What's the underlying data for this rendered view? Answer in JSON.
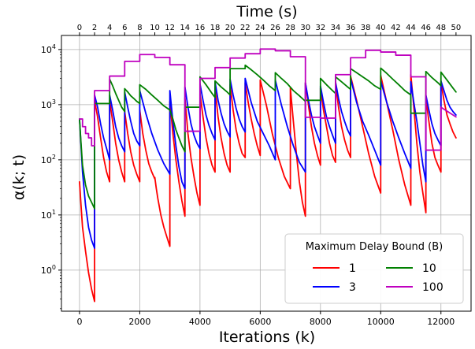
{
  "chart_data": {
    "type": "line",
    "xlabel": "Iterations (k)",
    "ylabel": "α(k; t)",
    "top_xlabel": "Time (s)",
    "yscale": "log",
    "xlim": [
      -600,
      13000
    ],
    "ylim": [
      0.18,
      18000
    ],
    "grid": true,
    "x_ticks": [
      0,
      2000,
      4000,
      6000,
      8000,
      10000,
      12000
    ],
    "x_tick_labels": [
      "0",
      "2000",
      "4000",
      "6000",
      "8000",
      "10000",
      "12000"
    ],
    "y_ticks": [
      1,
      10,
      100,
      1000,
      10000
    ],
    "y_tick_base": "10",
    "y_tick_exponents": [
      "0",
      "1",
      "2",
      "3",
      "4"
    ],
    "top_ticks": [
      0,
      2,
      4,
      6,
      8,
      10,
      12,
      14,
      16,
      18,
      20,
      22,
      24,
      26,
      28,
      30,
      32,
      34,
      36,
      38,
      40,
      42,
      44,
      46,
      48,
      50
    ],
    "top_tick_labels": [
      "0",
      "2",
      "4",
      "6",
      "8",
      "10",
      "12",
      "14",
      "16",
      "18",
      "20",
      "22",
      "24",
      "26",
      "28",
      "30",
      "32",
      "34",
      "36",
      "38",
      "40",
      "42",
      "44",
      "46",
      "48",
      "50"
    ],
    "top_tick_iterations_per_second": 250,
    "legend": {
      "title": "Maximum Delay Bound (B)",
      "placement": "lower-right",
      "columns": 2
    },
    "series": [
      {
        "name": "1",
        "color": "#ff0000",
        "x": [
          0,
          50,
          100,
          200,
          300,
          400,
          500,
          500,
          600,
          700,
          800,
          900,
          1000,
          1000,
          1100,
          1200,
          1300,
          1400,
          1500,
          1500,
          1600,
          1700,
          1800,
          1900,
          2000,
          2000,
          2100,
          2200,
          2300,
          2400,
          2500,
          2500,
          2550,
          2600,
          2700,
          2800,
          2900,
          3000,
          3000,
          3100,
          3200,
          3300,
          3400,
          3500,
          3500,
          3600,
          3700,
          3800,
          3900,
          4000,
          4000,
          4100,
          4200,
          4300,
          4400,
          4500,
          4500,
          4600,
          4700,
          4800,
          4900,
          5000,
          5000,
          5100,
          5200,
          5300,
          5400,
          5500,
          5500,
          5600,
          5700,
          5800,
          5900,
          6000,
          6000,
          6200,
          6400,
          6600,
          6800,
          7000,
          7000,
          7100,
          7200,
          7300,
          7400,
          7500,
          7500,
          7600,
          7700,
          7800,
          7900,
          8000,
          8000,
          8100,
          8200,
          8300,
          8400,
          8500,
          8500,
          8600,
          8700,
          8800,
          8900,
          9000,
          9000,
          9200,
          9400,
          9600,
          9800,
          10000,
          10000,
          10200,
          10400,
          10600,
          10800,
          11000,
          11000,
          11100,
          11200,
          11300,
          11400,
          11500,
          11500,
          11600,
          11700,
          11800,
          11900,
          12000,
          12000,
          12100,
          12200,
          12300,
          12400,
          12500
        ],
        "y": [
          40,
          15,
          6,
          2.2,
          0.9,
          0.45,
          0.27,
          1200,
          600,
          250,
          110,
          60,
          40,
          1200,
          500,
          200,
          100,
          60,
          40,
          750,
          300,
          140,
          80,
          55,
          40,
          800,
          300,
          150,
          85,
          60,
          45,
          48,
          30,
          20,
          10,
          6,
          4,
          2.7,
          1150,
          300,
          100,
          40,
          18,
          9.5,
          1350,
          300,
          110,
          50,
          25,
          15,
          1600,
          600,
          250,
          130,
          80,
          60,
          2000,
          600,
          250,
          130,
          80,
          60,
          2300,
          800,
          350,
          200,
          130,
          110,
          2500,
          1100,
          550,
          300,
          180,
          120,
          2800,
          1000,
          300,
          110,
          50,
          30,
          2000,
          500,
          130,
          40,
          17,
          9.5,
          2500,
          1000,
          400,
          200,
          120,
          80,
          2000,
          800,
          400,
          200,
          120,
          90,
          2400,
          900,
          400,
          230,
          150,
          110,
          3300,
          1200,
          400,
          130,
          50,
          25,
          3400,
          1100,
          350,
          100,
          35,
          15,
          3500,
          900,
          200,
          60,
          25,
          11,
          1300,
          500,
          200,
          110,
          80,
          60,
          2600,
          1200,
          650,
          450,
          320,
          250
        ]
      },
      {
        "name": "3",
        "color": "#0000ff",
        "x": [
          0,
          100,
          200,
          300,
          400,
          500,
          500,
          600,
          700,
          800,
          900,
          1000,
          1000,
          1100,
          1200,
          1300,
          1400,
          1500,
          1500,
          1600,
          1700,
          1800,
          1900,
          2000,
          2000,
          2200,
          2400,
          2600,
          2800,
          3000,
          3000,
          3100,
          3200,
          3300,
          3400,
          3500,
          3500,
          3600,
          3700,
          3800,
          3900,
          4000,
          4000,
          4100,
          4200,
          4300,
          4400,
          4500,
          4500,
          4600,
          4700,
          4800,
          4900,
          5000,
          5000,
          5100,
          5200,
          5300,
          5400,
          5500,
          5500,
          5700,
          5900,
          6100,
          6300,
          6500,
          6500,
          6700,
          6900,
          7100,
          7300,
          7500,
          7500,
          7600,
          7700,
          7800,
          7900,
          8000,
          8000,
          8100,
          8200,
          8300,
          8400,
          8500,
          8500,
          8600,
          8700,
          8800,
          8900,
          9000,
          9000,
          9200,
          9400,
          9600,
          9800,
          10000,
          10000,
          10200,
          10400,
          10600,
          10800,
          11000,
          11000,
          11100,
          11200,
          11300,
          11400,
          11500,
          11500,
          11600,
          11700,
          11800,
          11900,
          12000,
          12000,
          12100,
          12200,
          12300,
          12400,
          12500
        ],
        "y": [
          550,
          60,
          15,
          6,
          3.5,
          2.5,
          1500,
          900,
          450,
          250,
          160,
          100,
          1500,
          800,
          400,
          250,
          180,
          140,
          1700,
          900,
          500,
          300,
          220,
          180,
          1800,
          700,
          300,
          150,
          85,
          55,
          1800,
          500,
          180,
          75,
          40,
          30,
          2100,
          900,
          450,
          280,
          200,
          160,
          2400,
          1200,
          650,
          420,
          300,
          230,
          2600,
          1200,
          700,
          450,
          330,
          260,
          2900,
          1500,
          850,
          550,
          400,
          320,
          3000,
          1100,
          500,
          300,
          180,
          100,
          2800,
          1000,
          400,
          180,
          90,
          60,
          2500,
          1200,
          650,
          400,
          280,
          200,
          2200,
          1100,
          600,
          400,
          280,
          200,
          2600,
          1300,
          750,
          500,
          350,
          270,
          3000,
          1100,
          500,
          280,
          150,
          80,
          2700,
          1100,
          500,
          250,
          130,
          70,
          2600,
          1100,
          500,
          200,
          80,
          40,
          1500,
          800,
          450,
          300,
          230,
          180,
          2700,
          1800,
          1200,
          900,
          750,
          650
        ]
      },
      {
        "name": "10",
        "color": "#008000",
        "x": [
          0,
          50,
          100,
          200,
          300,
          400,
          500,
          500,
          1000,
          1000,
          1100,
          1200,
          1300,
          1400,
          1500,
          1500,
          1600,
          1700,
          1800,
          1900,
          2000,
          2000,
          2200,
          2400,
          2600,
          2800,
          3000,
          3000,
          3100,
          3200,
          3300,
          3400,
          3500,
          3500,
          4000,
          4000,
          4200,
          4400,
          4500,
          4500,
          4700,
          4900,
          5000,
          5000,
          5500,
          5500,
          5700,
          5900,
          6100,
          6300,
          6500,
          6500,
          6700,
          6900,
          7100,
          7300,
          7500,
          7500,
          8000,
          8000,
          8200,
          8400,
          8500,
          8500,
          8700,
          8900,
          9000,
          9000,
          9200,
          9400,
          9600,
          9800,
          10000,
          10000,
          10200,
          10400,
          10600,
          10800,
          11000,
          11000,
          11500,
          11500,
          11700,
          11900,
          12000,
          12000,
          12200,
          12400,
          12500
        ],
        "y": [
          550,
          200,
          80,
          35,
          22,
          17,
          13,
          1050,
          1050,
          2900,
          2200,
          1600,
          1200,
          900,
          750,
          1950,
          1700,
          1450,
          1300,
          1150,
          1050,
          2300,
          1900,
          1500,
          1200,
          950,
          800,
          800,
          550,
          350,
          250,
          180,
          140,
          900,
          900,
          3200,
          2300,
          1600,
          1350,
          2700,
          2100,
          1700,
          1500,
          4500,
          4500,
          5200,
          4300,
          3500,
          2800,
          2200,
          1800,
          3800,
          3000,
          2400,
          1800,
          1450,
          1150,
          1200,
          1200,
          3000,
          2300,
          1800,
          1600,
          3200,
          2600,
          2100,
          1900,
          4500,
          3800,
          3200,
          2700,
          2200,
          1900,
          4600,
          3700,
          2900,
          2300,
          1800,
          1500,
          700,
          700,
          4000,
          3100,
          2500,
          2200,
          3900,
          2800,
          2000,
          1700
        ]
      },
      {
        "name": "100",
        "color": "#bf00bf",
        "x": [
          0,
          100,
          100,
          200,
          200,
          300,
          300,
          400,
          400,
          500,
          500,
          1000,
          1000,
          1500,
          1500,
          2000,
          2000,
          2500,
          2500,
          3000,
          3000,
          3500,
          3500,
          3500,
          4000,
          4000,
          4500,
          4500,
          5000,
          5000,
          5500,
          5500,
          6000,
          6000,
          6500,
          6500,
          7000,
          7000,
          7500,
          7500,
          8000,
          8000,
          8500,
          8500,
          9000,
          9000,
          9500,
          9500,
          10000,
          10000,
          10500,
          10500,
          11000,
          11000,
          11500,
          11500,
          12000,
          12000,
          12500
        ],
        "y": [
          550,
          550,
          400,
          400,
          300,
          300,
          250,
          250,
          180,
          180,
          1800,
          1800,
          3300,
          3300,
          6100,
          6100,
          8100,
          8100,
          7200,
          7200,
          5300,
          5300,
          330,
          330,
          330,
          3000,
          3000,
          4700,
          4700,
          7000,
          7000,
          8400,
          8400,
          10200,
          10200,
          9500,
          9500,
          7400,
          7400,
          590,
          590,
          570,
          570,
          3500,
          3500,
          7100,
          7100,
          9700,
          9700,
          9000,
          9000,
          7900,
          7900,
          3200,
          3200,
          150,
          150,
          900,
          600
        ]
      }
    ]
  }
}
